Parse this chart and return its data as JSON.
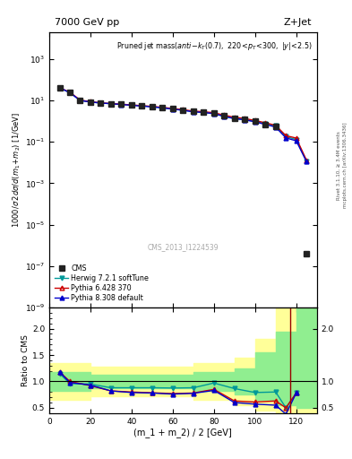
{
  "title_left": "7000 GeV pp",
  "title_right": "Z+Jet",
  "watermark": "CMS_2013_I1224539",
  "ylabel_ratio": "Ratio to CMS",
  "xlabel": "(m_1 + m_2) / 2 [GeV]",
  "right_label": "mcplots.cern.ch [arXiv:1306.3436]",
  "right_label2": "Rivet 3.1.10, ≥ 3.4M events",
  "cms_x": [
    5,
    10,
    15,
    20,
    25,
    30,
    35,
    40,
    45,
    50,
    55,
    60,
    65,
    70,
    75,
    80,
    85,
    90,
    95,
    100,
    105,
    110,
    125
  ],
  "cms_y": [
    40,
    25,
    10,
    8.5,
    7.5,
    7.0,
    6.5,
    6.0,
    5.5,
    5.0,
    4.5,
    4.0,
    3.5,
    3.0,
    2.8,
    2.4,
    1.8,
    1.4,
    1.2,
    1.0,
    0.7,
    0.55,
    4e-07
  ],
  "herwig_x": [
    5,
    10,
    15,
    20,
    25,
    30,
    35,
    40,
    45,
    50,
    55,
    60,
    65,
    70,
    75,
    80,
    85,
    90,
    95,
    100,
    105,
    110,
    115,
    120,
    125
  ],
  "herwig_y": [
    40,
    24,
    10,
    8.5,
    7.5,
    7.0,
    6.5,
    6.0,
    5.5,
    5.0,
    4.4,
    3.9,
    3.4,
    2.9,
    2.65,
    2.3,
    1.7,
    1.33,
    1.17,
    0.97,
    0.77,
    0.6,
    0.18,
    0.13,
    0.012
  ],
  "pythia6_x": [
    5,
    10,
    15,
    20,
    25,
    30,
    35,
    40,
    45,
    50,
    55,
    60,
    65,
    70,
    75,
    80,
    85,
    90,
    95,
    100,
    105,
    110,
    115,
    120,
    125
  ],
  "pythia6_y": [
    41,
    25,
    10.5,
    8.7,
    7.7,
    7.1,
    6.6,
    6.1,
    5.6,
    5.15,
    4.65,
    4.1,
    3.58,
    3.08,
    2.87,
    2.56,
    1.95,
    1.54,
    1.35,
    1.07,
    0.84,
    0.63,
    0.2,
    0.153,
    0.013
  ],
  "pythia8_x": [
    5,
    10,
    15,
    20,
    25,
    30,
    35,
    40,
    45,
    50,
    55,
    60,
    65,
    70,
    75,
    80,
    85,
    90,
    95,
    100,
    105,
    110,
    115,
    120,
    125
  ],
  "pythia8_y": [
    41,
    24,
    10,
    8.5,
    7.5,
    7.0,
    6.4,
    5.87,
    5.37,
    4.93,
    4.42,
    3.84,
    3.34,
    2.85,
    2.64,
    2.32,
    1.72,
    1.33,
    1.17,
    0.93,
    0.7,
    0.52,
    0.155,
    0.113,
    0.011
  ],
  "ratio_x": [
    5,
    10,
    20,
    30,
    40,
    50,
    60,
    70,
    80,
    90,
    100,
    110,
    115,
    120
  ],
  "ratio_herwig": [
    1.15,
    0.96,
    0.95,
    0.88,
    0.88,
    0.88,
    0.875,
    0.88,
    0.97,
    0.865,
    0.79,
    0.8,
    0.5,
    0.78
  ],
  "ratio_pythia6": [
    1.18,
    1.0,
    0.92,
    0.82,
    0.8,
    0.785,
    0.77,
    0.78,
    0.85,
    0.63,
    0.61,
    0.63,
    0.5,
    0.78
  ],
  "ratio_pythia8": [
    1.18,
    0.98,
    0.93,
    0.82,
    0.79,
    0.78,
    0.76,
    0.775,
    0.83,
    0.6,
    0.57,
    0.55,
    0.38,
    0.78
  ],
  "green_band_x": [
    0,
    10,
    20,
    30,
    40,
    50,
    60,
    70,
    80,
    90,
    100,
    110,
    120,
    130
  ],
  "green_band_low": [
    0.82,
    0.82,
    0.88,
    0.88,
    0.88,
    0.88,
    0.88,
    0.82,
    0.82,
    0.75,
    0.65,
    0.55,
    0.5,
    0.5
  ],
  "green_band_high": [
    1.18,
    1.18,
    1.12,
    1.12,
    1.12,
    1.12,
    1.12,
    1.18,
    1.18,
    1.25,
    1.55,
    1.95,
    2.5,
    2.5
  ],
  "yellow_band_x": [
    0,
    10,
    20,
    30,
    40,
    50,
    60,
    70,
    80,
    90,
    100,
    110,
    120,
    130
  ],
  "yellow_band_low": [
    0.65,
    0.65,
    0.72,
    0.72,
    0.72,
    0.72,
    0.72,
    0.65,
    0.65,
    0.55,
    0.45,
    0.35,
    0.3,
    0.3
  ],
  "yellow_band_high": [
    1.35,
    1.35,
    1.28,
    1.28,
    1.28,
    1.28,
    1.28,
    1.35,
    1.35,
    1.45,
    1.8,
    2.5,
    2.5,
    2.5
  ],
  "cms_color": "#222222",
  "herwig_color": "#009999",
  "pythia6_color": "#cc0000",
  "pythia8_color": "#0000cc",
  "green_color": "#90EE90",
  "yellow_color": "#FFFF99",
  "ratio_vline_x": 117,
  "ylim_main": [
    1e-09,
    20000.0
  ],
  "ylim_ratio": [
    0.4,
    2.4
  ],
  "xlim": [
    0,
    130
  ]
}
